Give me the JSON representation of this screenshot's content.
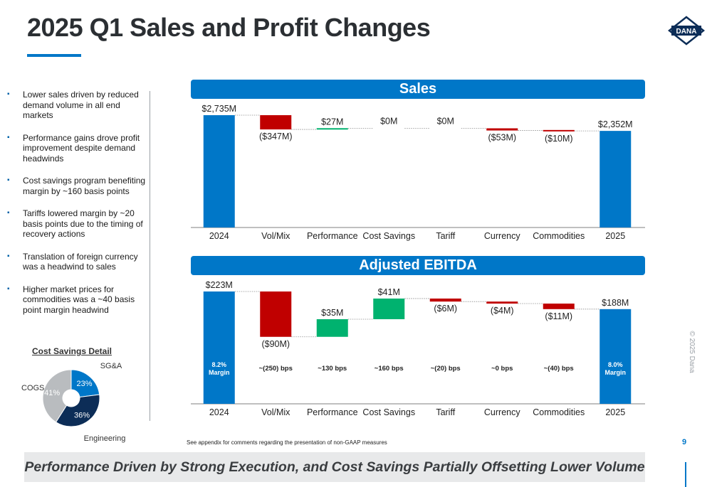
{
  "page": {
    "title": "2025 Q1 Sales and Profit Changes",
    "logo_text": "DANA",
    "page_number": "9",
    "copyright": "© 2025 Dana",
    "footnote": "See appendix for comments regarding the presentation of non-GAAP measures",
    "banner": "Performance Driven by Strong Execution, and Cost Savings Partially Offsetting Lower Volume"
  },
  "colors": {
    "accent": "#0077c8",
    "negative": "#c00000",
    "positive": "#00b26f",
    "engineering": "#0c2d57",
    "cogs": "#b9bcbf"
  },
  "bullets": [
    "Lower sales driven by reduced demand volume in all end markets",
    "Performance gains drove profit improvement despite demand headwinds",
    "Cost savings program benefiting margin by ~160 basis points",
    "Tariffs lowered margin by ~20 basis points due to the timing of recovery actions",
    "Translation of foreign currency was a headwind to sales",
    "Higher market prices for commodities was a ~40 basis point margin headwind"
  ],
  "chart_data": [
    {
      "type": "waterfall",
      "title": "Sales",
      "categories": [
        "2024",
        "Vol/Mix",
        "Performance",
        "Cost Savings",
        "Tariff",
        "Currency",
        "Commodities",
        "2025"
      ],
      "values": [
        2735,
        -347,
        27,
        0,
        0,
        -53,
        -10,
        2352
      ],
      "labels": [
        "$2,735M",
        "($347M)",
        "$27M",
        "$0M",
        "$0M",
        "($53M)",
        "($10M)",
        "$2,352M"
      ],
      "ylim": [
        0,
        2735
      ]
    },
    {
      "type": "waterfall",
      "title": "Adjusted EBITDA",
      "categories": [
        "2024",
        "Vol/Mix",
        "Performance",
        "Cost Savings",
        "Tariff",
        "Currency",
        "Commodities",
        "2025"
      ],
      "values": [
        223,
        -90,
        35,
        41,
        -6,
        -4,
        -11,
        188
      ],
      "labels": [
        "$223M",
        "($90M)",
        "$35M",
        "$41M",
        "($6M)",
        "($4M)",
        "($11M)",
        "$188M"
      ],
      "margin_labels": [
        "8.2% Margin",
        "~(250) bps",
        "~130 bps",
        "~160 bps",
        "~(20) bps",
        "~0 bps",
        "~(40) bps",
        "8.0% Margin"
      ],
      "ylim": [
        0,
        223
      ]
    },
    {
      "type": "pie",
      "title": "Cost Savings Detail",
      "slices": [
        {
          "name": "SG&A",
          "value": 23,
          "label": "23%"
        },
        {
          "name": "Engineering",
          "value": 36,
          "label": "36%"
        },
        {
          "name": "COGS",
          "value": 41,
          "label": "41%"
        }
      ]
    }
  ]
}
